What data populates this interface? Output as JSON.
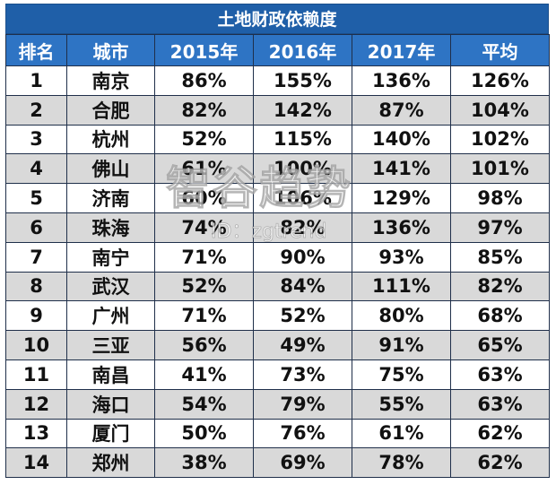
{
  "table": {
    "title": "土地财政依赖度",
    "headers": [
      "排名",
      "城市",
      "2015年",
      "2016年",
      "2017年",
      "平均"
    ],
    "rows": [
      [
        "1",
        "南京",
        "86%",
        "155%",
        "136%",
        "126%"
      ],
      [
        "2",
        "合肥",
        "82%",
        "142%",
        "87%",
        "104%"
      ],
      [
        "3",
        "杭州",
        "52%",
        "115%",
        "140%",
        "102%"
      ],
      [
        "4",
        "佛山",
        "61%",
        "100%",
        "141%",
        "101%"
      ],
      [
        "5",
        "济南",
        "60%",
        "106%",
        "129%",
        "98%"
      ],
      [
        "6",
        "珠海",
        "74%",
        "82%",
        "136%",
        "97%"
      ],
      [
        "7",
        "南宁",
        "71%",
        "90%",
        "93%",
        "85%"
      ],
      [
        "8",
        "武汉",
        "52%",
        "84%",
        "111%",
        "82%"
      ],
      [
        "9",
        "广州",
        "71%",
        "52%",
        "80%",
        "68%"
      ],
      [
        "10",
        "三亚",
        "56%",
        "49%",
        "91%",
        "65%"
      ],
      [
        "11",
        "南昌",
        "41%",
        "73%",
        "75%",
        "63%"
      ],
      [
        "12",
        "海口",
        "54%",
        "79%",
        "55%",
        "63%"
      ],
      [
        "13",
        "厦门",
        "50%",
        "76%",
        "61%",
        "62%"
      ],
      [
        "14",
        "郑州",
        "38%",
        "69%",
        "78%",
        "62%"
      ]
    ]
  },
  "watermark": {
    "main": "智谷趋势",
    "sub": "ID：zgtrend"
  },
  "colors": {
    "title_bg": "#1f5fa8",
    "header_bg": "#2e74c4",
    "alt_row_bg": "#d9d9d9"
  }
}
